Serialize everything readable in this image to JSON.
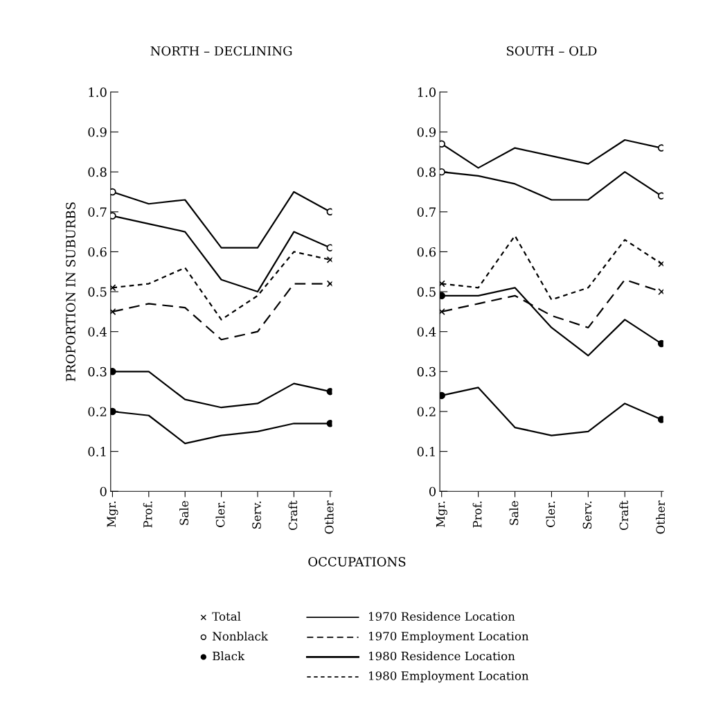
{
  "chart_data": [
    {
      "type": "line",
      "title": "NORTH – DECLINING",
      "ylabel": "PROPORTION IN SUBURBS",
      "xlabel": "OCCUPATIONS",
      "categories": [
        "Mgr.",
        "Prof.",
        "Sale",
        "Cler.",
        "Serv.",
        "Craft",
        "Other"
      ],
      "ylim": [
        0,
        1.0
      ],
      "yticks": [
        0,
        0.1,
        0.2,
        0.3,
        0.4,
        0.5,
        0.6,
        0.7,
        0.8,
        0.9,
        {
          "value": 1.0,
          "label": "1.0"
        }
      ],
      "grid": false,
      "series": [
        {
          "color": "#000000",
          "line_style": "solid",
          "values": [
            0.75,
            0.72,
            0.73,
            0.61,
            0.61,
            0.75,
            0.7
          ]
        },
        {
          "color": "#000000",
          "line_style": "solid",
          "values": [
            0.69,
            0.67,
            0.65,
            0.53,
            0.5,
            0.65,
            0.61
          ]
        },
        {
          "color": "#000000",
          "line_style": "dotted",
          "values": [
            0.51,
            0.52,
            0.56,
            0.43,
            0.49,
            0.6,
            0.58
          ]
        },
        {
          "color": "#000000",
          "line_style": "dashed",
          "values": [
            0.45,
            0.47,
            0.46,
            0.38,
            0.4,
            0.52,
            0.52
          ]
        },
        {
          "color": "#000000",
          "line_style": "solid",
          "values": [
            0.3,
            0.3,
            0.23,
            0.21,
            0.22,
            0.27,
            0.25
          ]
        },
        {
          "color": "#000000",
          "line_style": "solid",
          "values": [
            0.2,
            0.19,
            0.12,
            0.14,
            0.15,
            0.17,
            0.17
          ]
        },
        {
          "type": "scatter",
          "x": [
            "Mgr.",
            "Other"
          ],
          "color": "#ffffff",
          "marker": "circle",
          "values": [
            0.75,
            0.7
          ]
        },
        {
          "type": "scatter",
          "x": [
            "Mgr.",
            "Other"
          ],
          "color": "#ffffff",
          "marker": "circle",
          "values": [
            0.69,
            0.61
          ]
        },
        {
          "type": "scatter",
          "x": [
            "Mgr.",
            "Other"
          ],
          "color": "#000000",
          "marker": "cross",
          "values": [
            0.51,
            0.58
          ]
        },
        {
          "type": "scatter",
          "x": [
            "Mgr.",
            "Other"
          ],
          "color": "#000000",
          "marker": "cross",
          "values": [
            0.45,
            0.52
          ]
        },
        {
          "type": "scatter",
          "x": [
            "Mgr.",
            "Other"
          ],
          "color": "#000000",
          "marker": "circle",
          "values": [
            0.3,
            0.25
          ]
        },
        {
          "type": "scatter",
          "x": [
            "Mgr.",
            "Other"
          ],
          "color": "#000000",
          "marker": "circle",
          "values": [
            0.2,
            0.17
          ]
        }
      ],
      "annotations": [
        "Total",
        "Nonblack",
        "Black",
        "1970 Residence Location",
        "1970 Employment Location",
        "1980 Residence Location",
        "1980 Employment Location"
      ]
    },
    {
      "type": "line",
      "title": "SOUTH – OLD",
      "categories": [
        "Mgr.",
        "Prof.",
        "Sale",
        "Cler.",
        "Serv.",
        "Craft",
        "Other"
      ],
      "ylim": [
        0,
        1.0
      ],
      "yticks": [
        0,
        0.1,
        0.2,
        0.3,
        0.4,
        0.5,
        0.6,
        0.7,
        0.8,
        0.9,
        {
          "value": 1.0,
          "label": "1.0"
        }
      ],
      "grid": false,
      "series": [
        {
          "color": "#000000",
          "line_style": "solid",
          "values": [
            0.87,
            0.81,
            0.86,
            0.84,
            0.82,
            0.88,
            0.86
          ]
        },
        {
          "color": "#000000",
          "line_style": "solid",
          "values": [
            0.8,
            0.79,
            0.77,
            0.73,
            0.73,
            0.8,
            0.74
          ]
        },
        {
          "color": "#000000",
          "line_style": "dotted",
          "values": [
            0.52,
            0.51,
            0.64,
            0.48,
            0.51,
            0.63,
            0.57
          ]
        },
        {
          "color": "#000000",
          "line_style": "solid",
          "values": [
            0.49,
            0.49,
            0.51,
            0.41,
            0.34,
            0.43,
            0.37
          ]
        },
        {
          "color": "#000000",
          "line_style": "dashed",
          "values": [
            0.45,
            0.47,
            0.49,
            0.44,
            0.41,
            0.53,
            0.5
          ]
        },
        {
          "color": "#000000",
          "line_style": "solid",
          "values": [
            0.24,
            0.26,
            0.16,
            0.14,
            0.15,
            0.22,
            0.18
          ]
        },
        {
          "type": "scatter",
          "x": [
            "Mgr.",
            "Other"
          ],
          "color": "#ffffff",
          "marker": "circle",
          "values": [
            0.87,
            0.86
          ]
        },
        {
          "type": "scatter",
          "x": [
            "Mgr.",
            "Other"
          ],
          "color": "#ffffff",
          "marker": "circle",
          "values": [
            0.8,
            0.74
          ]
        },
        {
          "type": "scatter",
          "x": [
            "Mgr.",
            "Other"
          ],
          "color": "#000000",
          "marker": "cross",
          "values": [
            0.52,
            0.57
          ]
        },
        {
          "type": "scatter",
          "x": [
            "Mgr.",
            "Other"
          ],
          "color": "#000000",
          "marker": "circle",
          "values": [
            0.49,
            0.37
          ]
        },
        {
          "type": "scatter",
          "x": [
            "Mgr.",
            "Other"
          ],
          "color": "#000000",
          "marker": "cross",
          "values": [
            0.45,
            0.5
          ]
        },
        {
          "type": "scatter",
          "x": [
            "Mgr.",
            "Other"
          ],
          "color": "#000000",
          "marker": "circle",
          "values": [
            0.24,
            0.18
          ]
        }
      ]
    }
  ]
}
